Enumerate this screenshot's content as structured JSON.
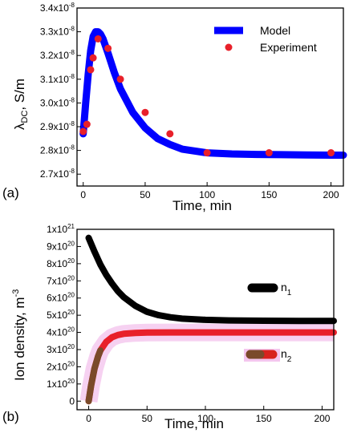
{
  "chart_data": [
    {
      "panel_label": "(a)",
      "type": "line",
      "xlabel": "Time, min",
      "ylabel": "λDC, S/m",
      "xlim": [
        -5,
        210
      ],
      "ylim": [
        2.65e-08,
        3.4e-08
      ],
      "x_ticks": [
        0,
        50,
        100,
        150,
        200
      ],
      "x_tick_labels": [
        "0",
        "50",
        "100",
        "150",
        "200"
      ],
      "y_ticks": [
        2.7e-08,
        2.8e-08,
        2.9e-08,
        3e-08,
        3.1e-08,
        3.2e-08,
        3.3e-08,
        3.4e-08
      ],
      "y_tick_labels": [
        "2.7x10-8",
        "2.8x10-8",
        "2.9x10-8",
        "3.0x10-8",
        "3.1x10-8",
        "3.2x10-8",
        "3.3x10-8",
        "3.4x10-8"
      ],
      "legend_position": "top-right",
      "series": [
        {
          "name": "Model",
          "kind": "line",
          "color": "#0000ff",
          "x": [
            0,
            2,
            4,
            6,
            8,
            10,
            12,
            14,
            16,
            18,
            20,
            25,
            30,
            40,
            50,
            60,
            70,
            80,
            100,
            120,
            140,
            160,
            180,
            200,
            210
          ],
          "y": [
            2.87e-08,
            3e-08,
            3.12e-08,
            3.22e-08,
            3.28e-08,
            3.3e-08,
            3.3e-08,
            3.29e-08,
            3.27e-08,
            3.24e-08,
            3.21e-08,
            3.13e-08,
            3.06e-08,
            2.96e-08,
            2.895e-08,
            2.85e-08,
            2.825e-08,
            2.805e-08,
            2.79e-08,
            2.785e-08,
            2.783e-08,
            2.782e-08,
            2.781e-08,
            2.78e-08,
            2.78e-08
          ]
        },
        {
          "name": "Experiment",
          "kind": "scatter",
          "color": "#e8202a",
          "x": [
            0,
            3,
            6,
            8,
            12,
            20,
            30,
            50,
            70,
            100,
            150,
            200
          ],
          "y": [
            2.88e-08,
            2.91e-08,
            3.14e-08,
            3.19e-08,
            3.27e-08,
            3.23e-08,
            3.1e-08,
            2.96e-08,
            2.87e-08,
            2.79e-08,
            2.79e-08,
            2.79e-08
          ]
        }
      ]
    },
    {
      "panel_label": "(b)",
      "type": "line",
      "xlabel": "Time, min",
      "ylabel": "Ion density, m-3",
      "xlim": [
        -10,
        210
      ],
      "ylim": [
        -5e+19,
        1e+21
      ],
      "x_ticks": [
        0,
        50,
        100,
        150,
        200
      ],
      "x_tick_labels": [
        "0",
        "50",
        "100",
        "150",
        "200"
      ],
      "y_ticks": [
        0,
        1e+20,
        2e+20,
        3e+20,
        4e+20,
        5e+20,
        6e+20,
        7e+20,
        8e+20,
        9e+20,
        1e+21
      ],
      "y_tick_labels": [
        "0",
        "1x10^20",
        "2x10^20",
        "3x10^20",
        "4x10^20",
        "5x10^20",
        "6x10^20",
        "7x10^20",
        "8x10^20",
        "9x10^20",
        "1x10^21"
      ],
      "series": [
        {
          "name": "n1",
          "kind": "line",
          "color": "#000000",
          "x": [
            0,
            5,
            10,
            15,
            20,
            25,
            30,
            40,
            50,
            60,
            70,
            80,
            100,
            120,
            150,
            180,
            210
          ],
          "y": [
            9.5e+20,
            8.7e+20,
            7.95e+20,
            7.35e+20,
            6.85e+20,
            6.4e+20,
            6.05e+20,
            5.55e+20,
            5.2e+20,
            5e+20,
            4.88e+20,
            4.8e+20,
            4.73e+20,
            4.7e+20,
            4.68e+20,
            4.67e+20,
            4.67e+20
          ]
        },
        {
          "name": "n2",
          "kind": "line",
          "color": "#e8202a",
          "x": [
            0,
            2,
            5,
            8,
            10,
            15,
            20,
            25,
            30,
            40,
            50,
            70,
            100,
            150,
            210
          ],
          "y": [
            0,
            9e+19,
            1.9e+20,
            2.6e+20,
            2.95e+20,
            3.45e+20,
            3.72e+20,
            3.85e+20,
            3.92e+20,
            3.97e+20,
            3.99e+20,
            4e+20,
            4e+20,
            4e+20,
            4e+20
          ]
        }
      ]
    }
  ]
}
